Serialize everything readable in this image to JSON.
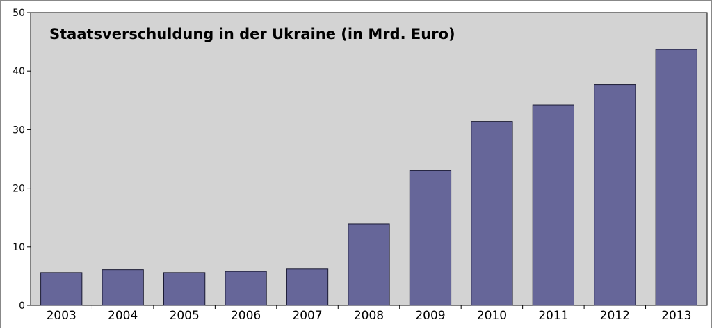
{
  "chart_data": {
    "type": "bar",
    "title": "Staatsverschuldung in der Ukraine (in Mrd. Euro)",
    "xlabel": "",
    "ylabel": "",
    "categories": [
      "2003",
      "2004",
      "2005",
      "2006",
      "2007",
      "2008",
      "2009",
      "2010",
      "2011",
      "2012",
      "2013"
    ],
    "values": [
      5.6,
      6.1,
      5.6,
      5.8,
      6.2,
      13.9,
      23.0,
      31.4,
      34.2,
      37.7,
      43.7
    ],
    "ylim": [
      0,
      50
    ],
    "yticks": [
      0,
      10,
      20,
      30,
      40,
      50
    ],
    "grid": false,
    "legend": "none",
    "colors": {
      "bar_fill": "#666699",
      "bar_stroke": "#1a1a33",
      "plot_background": "#d3d3d3"
    }
  }
}
